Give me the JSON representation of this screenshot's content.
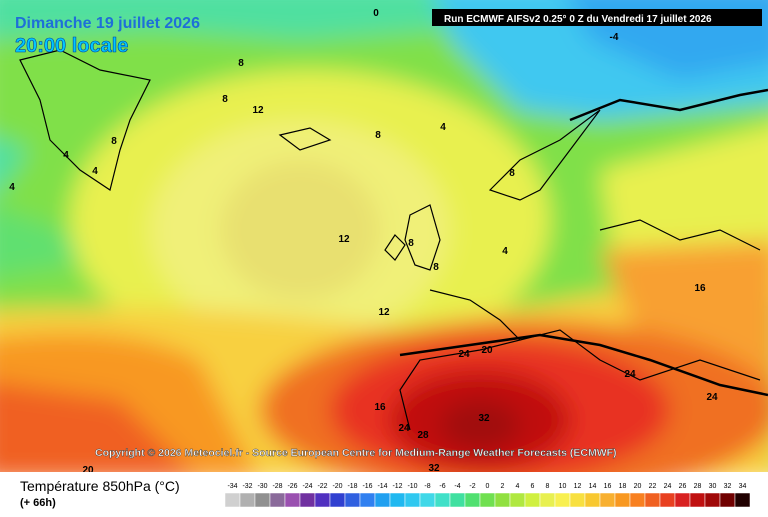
{
  "header": {
    "title": "Dimanche 19 juillet 2026",
    "time": "20:00 locale",
    "run": "Run ECMWF AIFSv2 0.25° 0 Z du Vendredi 17 juillet 2026"
  },
  "copyright": "Copyright © 2026 Meteociel.fr - Source European Centre for Medium-Range Weather Forecasts (ECMWF)",
  "legend": {
    "title": "Température 850hPa (°C)",
    "subtitle": "(+ 66h)",
    "ticks": [
      -34,
      -32,
      -30,
      -28,
      -26,
      -24,
      -22,
      -20,
      -18,
      -16,
      -14,
      -12,
      -10,
      -8,
      -6,
      -4,
      -2,
      0,
      2,
      4,
      6,
      8,
      10,
      12,
      14,
      16,
      18,
      20,
      22,
      24,
      26,
      28,
      30,
      32,
      34
    ],
    "colors": [
      "#d0d0d0",
      "#b0b0b0",
      "#909090",
      "#8a6a9a",
      "#9a50b0",
      "#7030a0",
      "#5030c0",
      "#3040d0",
      "#3060e0",
      "#3080f0",
      "#20a0f0",
      "#20b8f0",
      "#30c8f0",
      "#40d8e8",
      "#40e0c8",
      "#40e0a0",
      "#50e070",
      "#70e050",
      "#90e040",
      "#b0e840",
      "#d0f040",
      "#e8f050",
      "#f8f050",
      "#f8e040",
      "#f8c830",
      "#f8b030",
      "#f89820",
      "#f88020",
      "#f06020",
      "#e84020",
      "#d82020",
      "#c01010",
      "#a00808",
      "#700000",
      "#200000"
    ]
  },
  "contour_labels": [
    "0",
    "-4",
    "8",
    "8",
    "12",
    "8",
    "4",
    "8",
    "4",
    "4",
    "4",
    "8",
    "12",
    "8",
    "4",
    "8",
    "16",
    "12",
    "24",
    "20",
    "24",
    "24",
    "16",
    "32",
    "24",
    "28",
    "32",
    "20"
  ]
}
